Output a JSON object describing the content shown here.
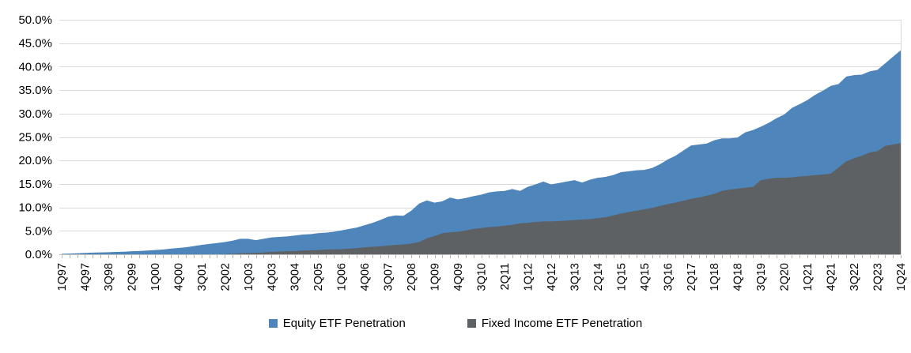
{
  "chart_data": {
    "type": "area",
    "title": "",
    "xlabel": "",
    "ylabel": "",
    "ylim": [
      0,
      50
    ],
    "y_tick_step": 5,
    "y_tick_labels": [
      "0.0%",
      "5.0%",
      "10.0%",
      "15.0%",
      "20.0%",
      "25.0%",
      "30.0%",
      "35.0%",
      "40.0%",
      "45.0%",
      "50.0%"
    ],
    "grid": "horizontal",
    "legend_position": "bottom",
    "overlapping_areas": true,
    "n_points": 109,
    "x_label_every_n_points": 3,
    "x_labels": [
      "1Q97",
      "4Q97",
      "3Q98",
      "2Q99",
      "1Q00",
      "4Q00",
      "3Q01",
      "2Q02",
      "1Q03",
      "4Q03",
      "3Q04",
      "2Q05",
      "1Q06",
      "4Q06",
      "3Q07",
      "2Q08",
      "1Q09",
      "4Q09",
      "3Q10",
      "2Q11",
      "1Q12",
      "4Q12",
      "3Q13",
      "2Q14",
      "1Q15",
      "4Q15",
      "3Q16",
      "2Q17",
      "1Q18",
      "4Q18",
      "3Q19",
      "2Q20",
      "1Q21",
      "4Q21",
      "3Q22",
      "2Q23",
      "1Q24"
    ],
    "series": [
      {
        "name": "Equity ETF Penetration",
        "color": "#4e86bc",
        "values": [
          0.1,
          0.15,
          0.2,
          0.3,
          0.35,
          0.4,
          0.45,
          0.5,
          0.55,
          0.65,
          0.7,
          0.8,
          0.9,
          1.0,
          1.2,
          1.35,
          1.5,
          1.75,
          2.0,
          2.2,
          2.4,
          2.6,
          2.9,
          3.3,
          3.3,
          3.0,
          3.3,
          3.6,
          3.7,
          3.8,
          4.0,
          4.2,
          4.3,
          4.5,
          4.6,
          4.8,
          5.1,
          5.4,
          5.7,
          6.2,
          6.7,
          7.3,
          8.0,
          8.3,
          8.2,
          9.3,
          10.8,
          11.5,
          11.0,
          11.3,
          12.1,
          11.7,
          12.0,
          12.4,
          12.7,
          13.2,
          13.4,
          13.5,
          13.9,
          13.5,
          14.4,
          14.9,
          15.5,
          14.9,
          15.2,
          15.5,
          15.8,
          15.3,
          15.9,
          16.3,
          16.5,
          16.9,
          17.5,
          17.7,
          17.9,
          18.0,
          18.4,
          19.2,
          20.2,
          21.0,
          22.1,
          23.2,
          23.4,
          23.6,
          24.3,
          24.7,
          24.7,
          24.9,
          26.0,
          26.5,
          27.2,
          28.0,
          29.0,
          29.8,
          31.2,
          32.0,
          32.9,
          34.0,
          34.9,
          35.9,
          36.3,
          37.9,
          38.2,
          38.3,
          39.0,
          39.3,
          40.7,
          42.1,
          43.5
        ]
      },
      {
        "name": "Fixed Income ETF Penetration",
        "color": "#5e6164",
        "values": [
          0,
          0,
          0,
          0,
          0,
          0,
          0,
          0,
          0,
          0,
          0,
          0,
          0,
          0,
          0,
          0,
          0,
          0,
          0,
          0,
          0,
          0.05,
          0.1,
          0.2,
          0.25,
          0.3,
          0.4,
          0.5,
          0.6,
          0.65,
          0.7,
          0.8,
          0.85,
          0.9,
          1.0,
          1.05,
          1.1,
          1.2,
          1.3,
          1.5,
          1.6,
          1.7,
          1.85,
          2.0,
          2.1,
          2.3,
          2.6,
          3.4,
          3.9,
          4.5,
          4.7,
          4.8,
          5.1,
          5.4,
          5.6,
          5.8,
          5.9,
          6.1,
          6.3,
          6.6,
          6.7,
          6.9,
          7.0,
          7.0,
          7.1,
          7.2,
          7.3,
          7.4,
          7.5,
          7.7,
          7.9,
          8.3,
          8.7,
          9.0,
          9.3,
          9.6,
          9.9,
          10.3,
          10.7,
          11.0,
          11.4,
          11.8,
          12.1,
          12.5,
          12.9,
          13.5,
          13.8,
          14.0,
          14.2,
          14.4,
          15.8,
          16.1,
          16.3,
          16.3,
          16.4,
          16.6,
          16.7,
          16.9,
          17.0,
          17.2,
          18.5,
          19.8,
          20.5,
          21.0,
          21.7,
          22.0,
          23.1,
          23.4,
          23.7
        ]
      }
    ],
    "colors": {
      "gridline": "#d9d9d9",
      "axis_line": "#bfbfbf",
      "tick": "#b3b3b3",
      "text": "#000000"
    }
  }
}
